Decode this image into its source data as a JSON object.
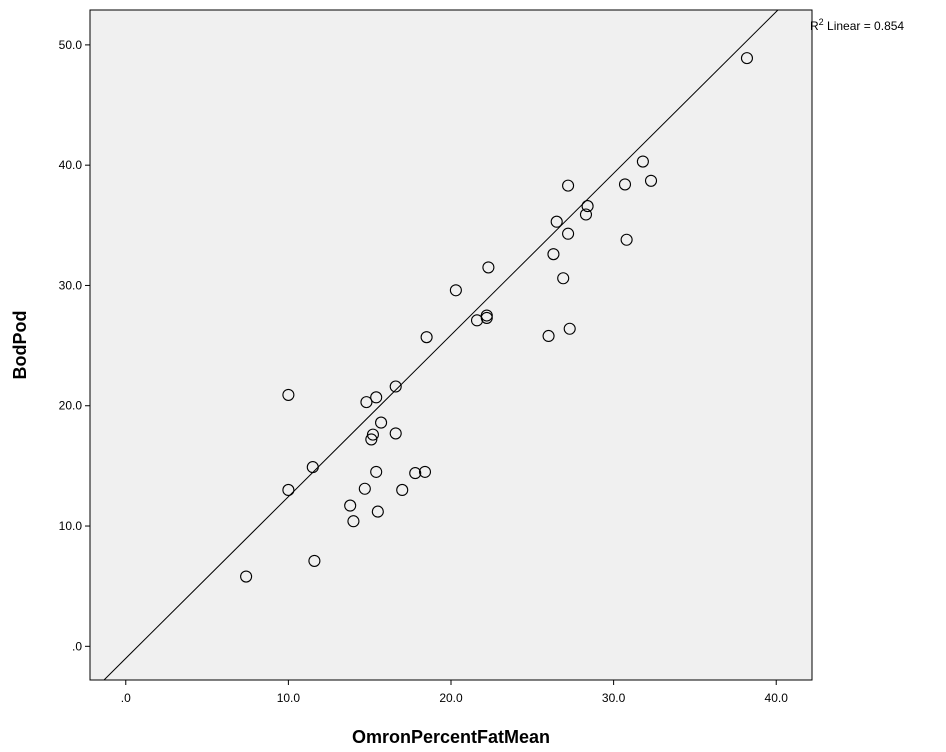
{
  "chart_data": {
    "type": "scatter",
    "title": "",
    "xlabel": "OmronPercentFatMean",
    "ylabel": "BodPod",
    "xlim": [
      -2.2,
      42.2
    ],
    "ylim": [
      -2.8,
      52.9
    ],
    "x_ticks": [
      0,
      10,
      20,
      30,
      40
    ],
    "x_tick_labels": [
      ".0",
      "10.0",
      "20.0",
      "30.0",
      "40.0"
    ],
    "y_ticks": [
      0,
      10,
      20,
      30,
      40,
      50
    ],
    "y_tick_labels": [
      ".0",
      "10.0",
      "20.0",
      "30.0",
      "40.0",
      "50.0"
    ],
    "grid": false,
    "legend": "none",
    "plot_background": "#f0f0f0",
    "marker_color": "#000000",
    "line_color": "#000000",
    "annotation": {
      "base": "R",
      "superscript": "2",
      "text": " Linear = 0.854",
      "value": 0.854
    },
    "fit_line": {
      "slope": 1.344,
      "intercept": -1.0
    },
    "points": [
      {
        "x": 7.4,
        "y": 5.8
      },
      {
        "x": 10.0,
        "y": 13.0
      },
      {
        "x": 10.0,
        "y": 20.9
      },
      {
        "x": 11.5,
        "y": 14.9
      },
      {
        "x": 11.6,
        "y": 7.1
      },
      {
        "x": 13.8,
        "y": 11.7
      },
      {
        "x": 14.0,
        "y": 10.4
      },
      {
        "x": 14.7,
        "y": 13.1
      },
      {
        "x": 14.8,
        "y": 20.3
      },
      {
        "x": 15.1,
        "y": 17.2
      },
      {
        "x": 15.2,
        "y": 17.6
      },
      {
        "x": 15.4,
        "y": 20.7
      },
      {
        "x": 15.4,
        "y": 14.5
      },
      {
        "x": 15.5,
        "y": 11.2
      },
      {
        "x": 15.7,
        "y": 18.6
      },
      {
        "x": 16.6,
        "y": 21.6
      },
      {
        "x": 16.6,
        "y": 17.7
      },
      {
        "x": 17.0,
        "y": 13.0
      },
      {
        "x": 17.8,
        "y": 14.4
      },
      {
        "x": 18.4,
        "y": 14.5
      },
      {
        "x": 18.5,
        "y": 25.7
      },
      {
        "x": 20.3,
        "y": 29.6
      },
      {
        "x": 21.6,
        "y": 27.1
      },
      {
        "x": 22.2,
        "y": 27.3
      },
      {
        "x": 22.2,
        "y": 27.5
      },
      {
        "x": 22.3,
        "y": 31.5
      },
      {
        "x": 26.0,
        "y": 25.8
      },
      {
        "x": 26.3,
        "y": 32.6
      },
      {
        "x": 26.5,
        "y": 35.3
      },
      {
        "x": 26.9,
        "y": 30.6
      },
      {
        "x": 27.2,
        "y": 34.3
      },
      {
        "x": 27.2,
        "y": 38.3
      },
      {
        "x": 27.3,
        "y": 26.4
      },
      {
        "x": 28.3,
        "y": 35.9
      },
      {
        "x": 28.4,
        "y": 36.6
      },
      {
        "x": 30.7,
        "y": 38.4
      },
      {
        "x": 30.8,
        "y": 33.8
      },
      {
        "x": 31.8,
        "y": 40.3
      },
      {
        "x": 32.3,
        "y": 38.7
      },
      {
        "x": 38.2,
        "y": 48.9
      }
    ]
  }
}
